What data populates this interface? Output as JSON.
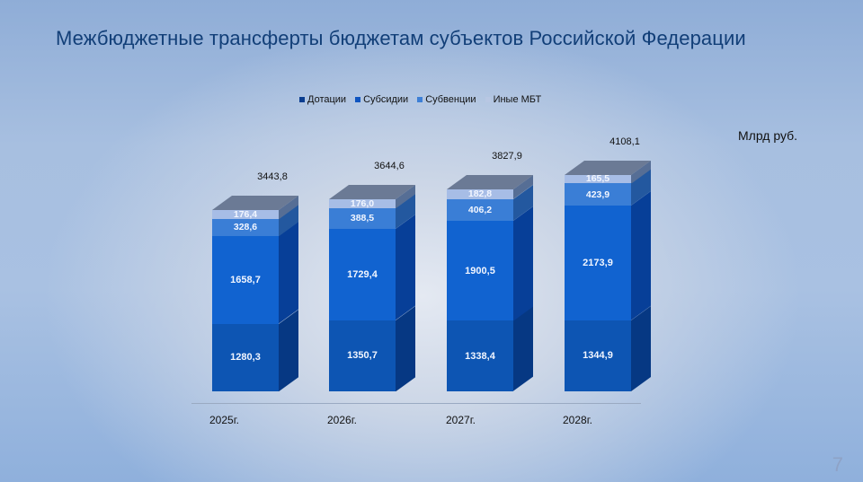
{
  "slide": {
    "title": "Межбюджетные трансферты бюджетам субъектов Российской Федерации",
    "unit": "Млрд руб.",
    "page_number": "7"
  },
  "legend": [
    {
      "label": "Дотации",
      "color": "#0a3d8f"
    },
    {
      "label": "Субсидии",
      "color": "#1055c0"
    },
    {
      "label": "Субвенции",
      "color": "#3d7fd6"
    },
    {
      "label": "Иные МБТ",
      "color": "#b8c7e3"
    }
  ],
  "colors": {
    "dotacii_front": "#0d55b3",
    "dotacii_side": "#063883",
    "subsidii_front": "#1163d0",
    "subsidii_side": "#073f98",
    "subvencii_front": "#3a7ed6",
    "subvencii_side": "#23589f",
    "inye_front": "#a7bde6",
    "inye_side": "#566e95",
    "top_face": "#6b7a95"
  },
  "bars": [
    {
      "year": "2025г.",
      "total": "3443,8",
      "dotacii": "1280,3",
      "subsidii": "1658,7",
      "subvencii": "328,6",
      "inye": "176,4"
    },
    {
      "year": "2026г.",
      "total": "3644,6",
      "dotacii": "1350,7",
      "subsidii": "1729,4",
      "subvencii": "388,5",
      "inye": "176,0"
    },
    {
      "year": "2027г.",
      "total": "3827,9",
      "dotacii": "1338,4",
      "subsidii": "1900,5",
      "subvencii": "406,2",
      "inye": "182,8"
    },
    {
      "year": "2028г.",
      "total": "4108,1",
      "dotacii": "1344,9",
      "subsidii": "2173,9",
      "subvencii": "423,9",
      "inye": "165,5"
    }
  ],
  "chart_data": {
    "type": "bar",
    "stacked": true,
    "three_d": true,
    "title": "Межбюджетные трансферты бюджетам субъектов Российской Федерации",
    "ylabel": "Млрд руб.",
    "xlabel": "",
    "categories": [
      "2025г.",
      "2026г.",
      "2027г.",
      "2028г."
    ],
    "series": [
      {
        "name": "Дотации",
        "values": [
          1280.3,
          1350.7,
          1338.4,
          1344.9
        ]
      },
      {
        "name": "Субсидии",
        "values": [
          1658.7,
          1729.4,
          1900.5,
          2173.9
        ]
      },
      {
        "name": "Субвенции",
        "values": [
          328.6,
          388.5,
          406.2,
          423.9
        ]
      },
      {
        "name": "Иные МБТ",
        "values": [
          176.4,
          176.0,
          182.8,
          165.5
        ]
      }
    ],
    "totals": [
      3443.8,
      3644.6,
      3827.9,
      4108.1
    ],
    "legend_position": "top",
    "grid": false
  }
}
